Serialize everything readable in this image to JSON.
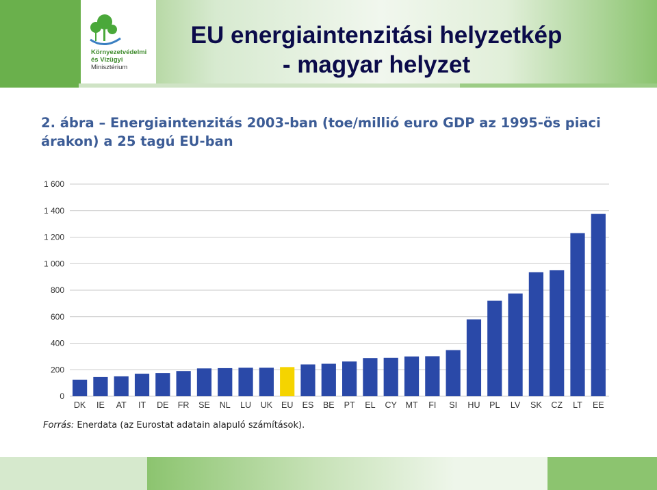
{
  "header": {
    "title_line1": "EU energiaintenzitási helyzetkép",
    "title_line2": "- magyar helyzet",
    "logo_text_line1": "Környezetvédelmi",
    "logo_text_line2": "és Vízügyi",
    "logo_text_line3": "Minisztérium"
  },
  "colors": {
    "bar": "#2a49a8",
    "highlight_bar": "#f5d400",
    "grid": "#c9c9c9",
    "brand_green": "#6ab04c"
  },
  "chart_data": {
    "type": "bar",
    "title": "2. ábra – Energiaintenzitás 2003-ban (toe/millió euro GDP az 1995-ös piaci árakon) a 25 tagú EU-ban",
    "categories": [
      "DK",
      "IE",
      "AT",
      "IT",
      "DE",
      "FR",
      "SE",
      "NL",
      "LU",
      "UK",
      "EU",
      "ES",
      "BE",
      "PT",
      "EL",
      "CY",
      "MT",
      "FI",
      "SI",
      "HU",
      "PL",
      "LV",
      "SK",
      "CZ",
      "LT",
      "EE"
    ],
    "values": [
      125,
      145,
      150,
      170,
      175,
      190,
      210,
      212,
      215,
      215,
      220,
      240,
      245,
      262,
      288,
      290,
      300,
      302,
      348,
      580,
      720,
      775,
      935,
      950,
      1230,
      1375
    ],
    "highlight_category": "EU",
    "ylim": [
      0,
      1600
    ],
    "yticks": [
      "0",
      "200",
      "400",
      "600",
      "800",
      "1 000",
      "1 200",
      "1 400",
      "1 600"
    ],
    "ytick_values": [
      0,
      200,
      400,
      600,
      800,
      1000,
      1200,
      1400,
      1600
    ],
    "xlabel": "",
    "ylabel": "",
    "grid": true,
    "source_label": "Forrás:",
    "source_text": "Enerdata (az Eurostat adatain alapuló számítások)."
  }
}
